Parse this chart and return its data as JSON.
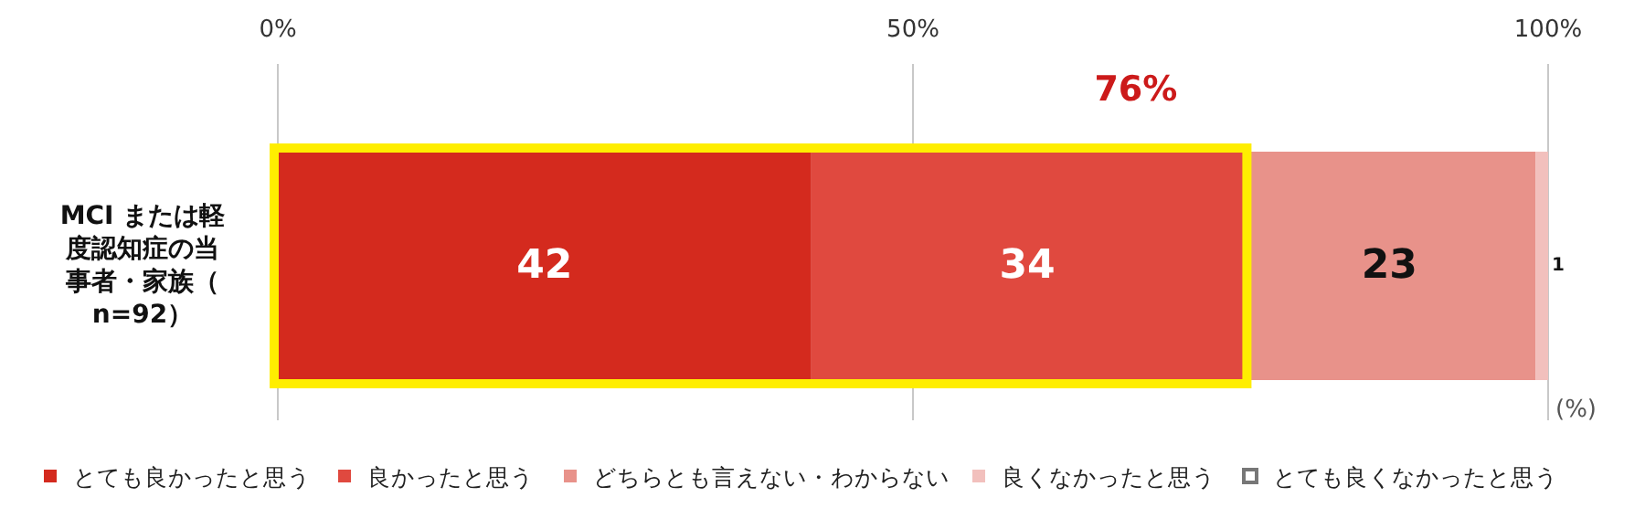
{
  "chart_data": {
    "type": "bar",
    "orientation": "horizontal",
    "stacked": true,
    "categories": [
      "MCI または軽度認知症の当事者・家族（n=92）"
    ],
    "series": [
      {
        "name": "とても良かったと思う",
        "color": "#d42a1e",
        "values": [
          42
        ],
        "value_labels": [
          "42"
        ]
      },
      {
        "name": "良かったと思う",
        "color": "#e0493f",
        "values": [
          34
        ],
        "value_labels": [
          "34"
        ]
      },
      {
        "name": "どちらとも言えない・わからない",
        "color": "#e8928a",
        "values": [
          23
        ],
        "value_labels": [
          "23"
        ]
      },
      {
        "name": "良くなかったと思う",
        "color": "#f2c0bd",
        "values": [
          1
        ],
        "value_labels": [
          "1"
        ]
      },
      {
        "name": "とても良くなかったと思う",
        "color": "#ffffff",
        "values": [
          0
        ],
        "value_labels": [
          null
        ]
      }
    ],
    "xlim": [
      0,
      100
    ],
    "xticks": [
      {
        "value": 0,
        "label": "0%"
      },
      {
        "value": 50,
        "label": "50%"
      },
      {
        "value": 100,
        "label": "100%"
      }
    ],
    "xlabel": "(%)",
    "grid": "x",
    "legend": "bottom",
    "annotations": [
      "76%"
    ]
  }
}
